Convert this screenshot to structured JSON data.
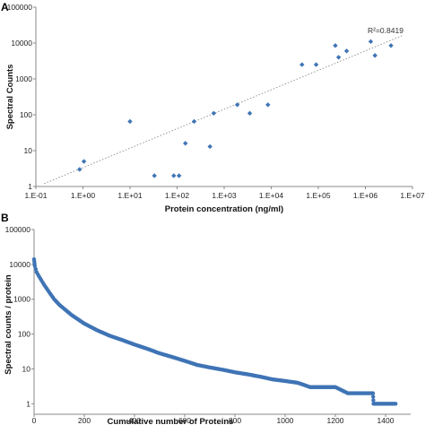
{
  "chart_data": [
    {
      "panel_label": "A",
      "type": "scatter",
      "xlabel": "Protein concentration (ng/ml)",
      "ylabel": "Spectral Counts",
      "x_scale": "log",
      "y_scale": "log",
      "xlim": [
        0.1,
        10000000
      ],
      "ylim": [
        1,
        100000
      ],
      "x_tick_labels": [
        "1.E-01",
        "1.E+00",
        "1.E+01",
        "1.E+02",
        "1.E+03",
        "1.E+04",
        "1.E+05",
        "1.E+06",
        "1.E+07"
      ],
      "y_tick_labels": [
        "1",
        "10",
        "100",
        "1000",
        "10000",
        "100000"
      ],
      "annotation": "R²=0.8419",
      "trendline": {
        "style": "dotted",
        "points": [
          [
            0.15,
            1.2
          ],
          [
            6000000,
            16000
          ]
        ]
      },
      "marker_color": "#3f74b5",
      "points": [
        [
          0.85,
          3
        ],
        [
          1.05,
          5
        ],
        [
          10,
          65
        ],
        [
          33,
          2
        ],
        [
          85,
          2
        ],
        [
          110,
          2
        ],
        [
          150,
          16
        ],
        [
          230,
          65
        ],
        [
          500,
          13
        ],
        [
          600,
          110
        ],
        [
          1900,
          190
        ],
        [
          3500,
          110
        ],
        [
          8500,
          190
        ],
        [
          45000,
          2500
        ],
        [
          90000,
          2500
        ],
        [
          230000,
          8500
        ],
        [
          270000,
          4000
        ],
        [
          400000,
          6000
        ],
        [
          1300000,
          11000
        ],
        [
          1600000,
          4500
        ],
        [
          3500000,
          8500
        ]
      ]
    },
    {
      "panel_label": "B",
      "type": "scatter",
      "xlabel": "Cumulative number of Proteins",
      "ylabel": "Spectral counts / protein",
      "y_scale": "log",
      "xlim": [
        0,
        1500
      ],
      "ylim": [
        0.5,
        100000
      ],
      "x_tick_labels": [
        "0",
        "200",
        "400",
        "600",
        "800",
        "1000",
        "1200",
        "1400"
      ],
      "y_tick_labels": [
        "1",
        "10",
        "100",
        "1000",
        "10000",
        "100000"
      ],
      "marker_color": "#3f74b5",
      "curve_points": [
        [
          0,
          14000
        ],
        [
          3,
          9000
        ],
        [
          10,
          6000
        ],
        [
          20,
          4500
        ],
        [
          40,
          2600
        ],
        [
          60,
          1600
        ],
        [
          80,
          1000
        ],
        [
          100,
          700
        ],
        [
          150,
          350
        ],
        [
          200,
          200
        ],
        [
          250,
          130
        ],
        [
          300,
          90
        ],
        [
          350,
          68
        ],
        [
          400,
          50
        ],
        [
          450,
          38
        ],
        [
          500,
          28
        ],
        [
          550,
          22
        ],
        [
          600,
          17
        ],
        [
          650,
          13
        ],
        [
          700,
          11
        ],
        [
          750,
          9.5
        ],
        [
          800,
          8
        ],
        [
          850,
          7
        ],
        [
          900,
          6
        ],
        [
          950,
          5
        ],
        [
          1000,
          4.5
        ],
        [
          1050,
          4
        ],
        [
          1100,
          3
        ],
        [
          1150,
          3
        ],
        [
          1200,
          3
        ],
        [
          1250,
          2
        ],
        [
          1300,
          2
        ],
        [
          1350,
          2
        ],
        [
          1352,
          1
        ],
        [
          1400,
          1
        ],
        [
          1440,
          1
        ]
      ]
    }
  ]
}
